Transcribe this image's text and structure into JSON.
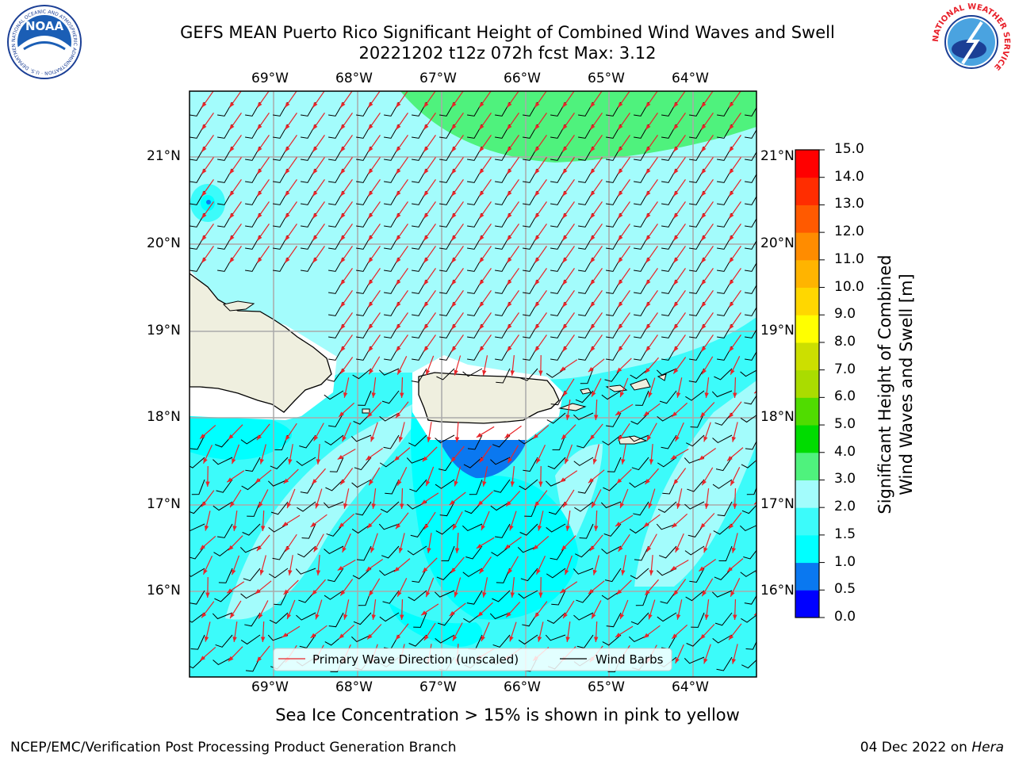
{
  "header": {
    "title_line1": "GEFS MEAN Puerto Rico Significant Height of Combined Wind Waves and Swell",
    "title_line2": "20221202 t12z 072h fcst   Max: 3.12"
  },
  "logos": {
    "noaa_text": "NOAA",
    "noaa_ring_text": "NATIONAL OCEANIC AND ATMOSPHERIC ADMINISTRATION · U.S. DEPARTMENT OF COMMERCE",
    "nws_ring_text": "NATIONAL WEATHER SERVICE"
  },
  "map": {
    "lon_ticks": [
      "69°W",
      "68°W",
      "67°W",
      "66°W",
      "65°W",
      "64°W"
    ],
    "lat_ticks": [
      "21°N",
      "20°N",
      "19°N",
      "18°N",
      "17°N",
      "16°N"
    ],
    "extent": {
      "lon_min": -70.0,
      "lon_max": -63.3,
      "lat_min": 15.0,
      "lat_max": 21.75
    },
    "field_max": 3.12
  },
  "legend": {
    "wave_direction_label": "Primary Wave Direction (unscaled)",
    "wind_barbs_label": "Wind Barbs",
    "wave_color": "#e8262a",
    "barb_color": "#000000"
  },
  "colorbar": {
    "label_line1": "Significant Height of Combined",
    "label_line2": "Wind Waves and Swell [m]",
    "levels": [
      "0.0",
      "0.5",
      "1.0",
      "1.5",
      "2.0",
      "3.0",
      "4.0",
      "5.0",
      "6.0",
      "7.0",
      "8.0",
      "9.0",
      "10.0",
      "11.0",
      "12.0",
      "13.0",
      "14.0",
      "15.0"
    ],
    "colors": [
      "#0000ff",
      "#0a78f0",
      "#00ffff",
      "#3cfbfa",
      "#a3fcfc",
      "#4ff27d",
      "#00dc00",
      "#50dc00",
      "#aadc00",
      "#ccdf00",
      "#ffff00",
      "#ffd700",
      "#ffb400",
      "#ff8c00",
      "#ff5a00",
      "#ff2d00",
      "#ff0000"
    ]
  },
  "footer": {
    "sea_ice_note": "Sea Ice Concentration > 15% is shown in pink to yellow",
    "branch": "NCEP/EMC/Verification Post Processing Product Generation Branch",
    "date_prefix": "04 Dec 2022 on ",
    "machine": "Hera"
  }
}
